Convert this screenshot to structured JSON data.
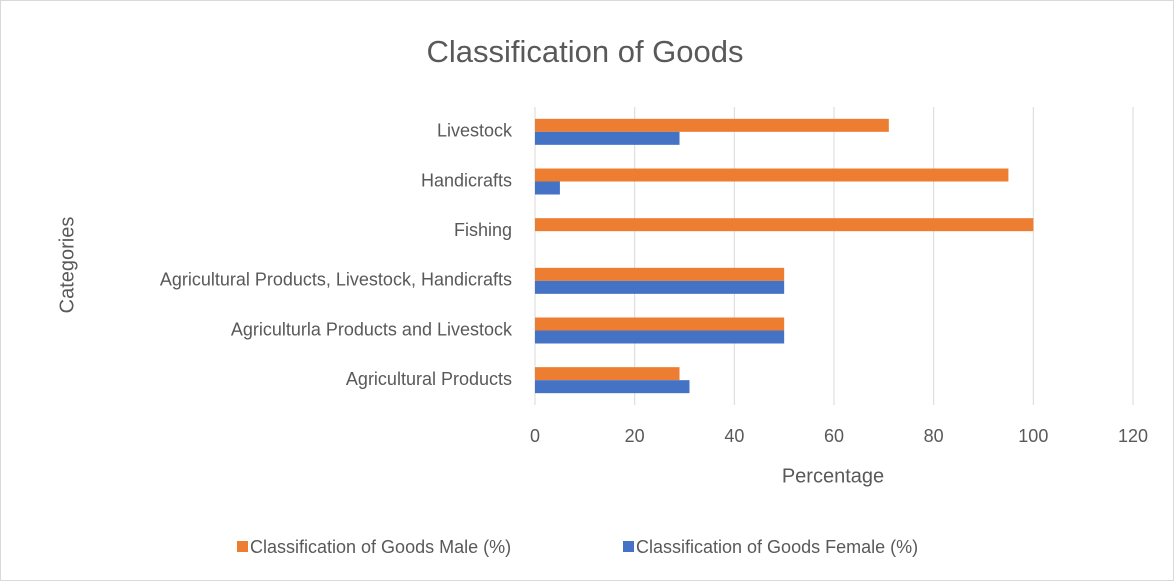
{
  "chart_data": {
    "type": "hbar",
    "title": "Classification of Goods",
    "x_label": "Percentage",
    "y_label": "Categories",
    "categories": [
      "Livestock",
      "Handicrafts",
      "Fishing",
      "Agricultural Products, Livestock, Handicrafts",
      "Agriculturla Products and Livestock",
      "Agricultural Products"
    ],
    "series": [
      {
        "name": "Classification of Goods Male (%)",
        "color": "#ed7d31",
        "values": [
          71,
          95,
          100,
          50,
          50,
          29
        ]
      },
      {
        "name": "Classification of Goods Female (%)",
        "color": "#4472c4",
        "values": [
          29,
          5,
          0,
          50,
          50,
          31
        ]
      }
    ],
    "xlim": [
      0,
      120
    ],
    "xticks": [
      0,
      20,
      40,
      60,
      80,
      100,
      120
    ],
    "grid": true,
    "legend": "bottom"
  }
}
